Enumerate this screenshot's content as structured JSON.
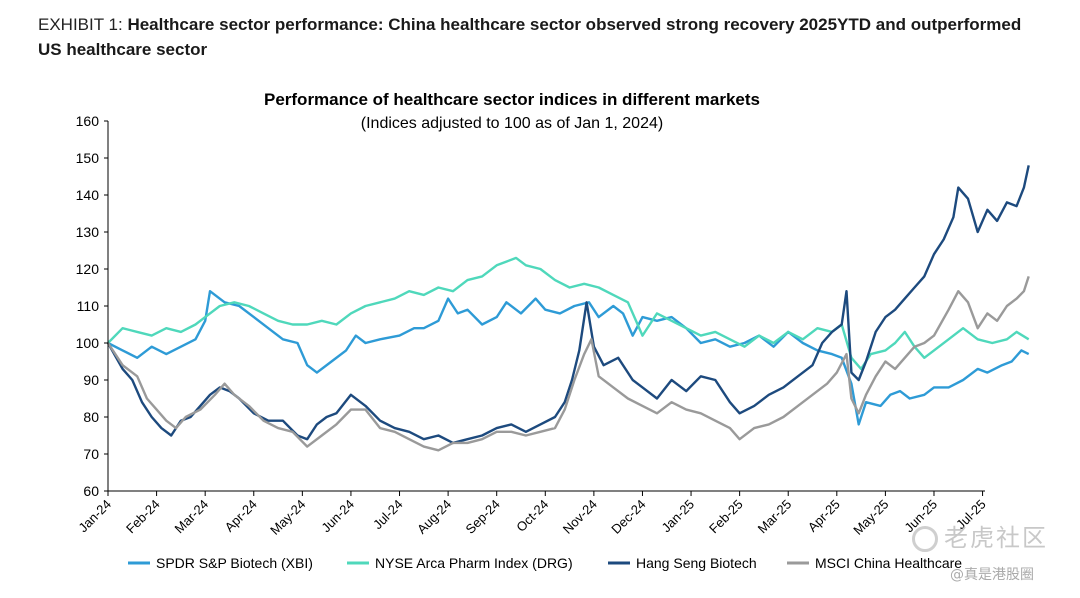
{
  "exhibit": {
    "prefix": "EXHIBIT 1: ",
    "title": "Healthcare sector performance: China healthcare sector observed strong recovery 2025YTD and outperformed US healthcare sector"
  },
  "watermark": {
    "brand": "老虎社区",
    "handle": "@真是港股圈"
  },
  "chart_data": {
    "type": "line",
    "title": "Performance of healthcare sector indices in different markets",
    "subtitle": "(Indices adjusted to 100 as of Jan 1, 2024)",
    "xlabel": "",
    "ylabel": "",
    "ylim": [
      60,
      160
    ],
    "yticks": [
      60,
      70,
      80,
      90,
      100,
      110,
      120,
      130,
      140,
      150,
      160
    ],
    "xticks": [
      "Jan-24",
      "Feb-24",
      "Mar-24",
      "Apr-24",
      "May-24",
      "Jun-24",
      "Jul-24",
      "Aug-24",
      "Sep-24",
      "Oct-24",
      "Nov-24",
      "Dec-24",
      "Jan-25",
      "Feb-25",
      "Mar-25",
      "Apr-25",
      "May-25",
      "Jun-25",
      "Jul-25"
    ],
    "x_unit": "months since Jan-24",
    "grid": false,
    "legend": "bottom",
    "series": [
      {
        "name": "SPDR S&P Biotech (XBI)",
        "color": "#2e9bd6",
        "points": [
          [
            0,
            100
          ],
          [
            0.3,
            98
          ],
          [
            0.6,
            96
          ],
          [
            0.9,
            99
          ],
          [
            1.2,
            97
          ],
          [
            1.5,
            99
          ],
          [
            1.8,
            101
          ],
          [
            2.0,
            106
          ],
          [
            2.1,
            114
          ],
          [
            2.4,
            111
          ],
          [
            2.7,
            110
          ],
          [
            3.0,
            107
          ],
          [
            3.3,
            104
          ],
          [
            3.6,
            101
          ],
          [
            3.9,
            100
          ],
          [
            4.1,
            94
          ],
          [
            4.3,
            92
          ],
          [
            4.6,
            95
          ],
          [
            4.9,
            98
          ],
          [
            5.1,
            102
          ],
          [
            5.3,
            100
          ],
          [
            5.6,
            101
          ],
          [
            6.0,
            102
          ],
          [
            6.3,
            104
          ],
          [
            6.5,
            104
          ],
          [
            6.8,
            106
          ],
          [
            7.0,
            112
          ],
          [
            7.2,
            108
          ],
          [
            7.4,
            109
          ],
          [
            7.7,
            105
          ],
          [
            8.0,
            107
          ],
          [
            8.2,
            111
          ],
          [
            8.5,
            108
          ],
          [
            8.8,
            112
          ],
          [
            9.0,
            109
          ],
          [
            9.3,
            108
          ],
          [
            9.6,
            110
          ],
          [
            9.9,
            111
          ],
          [
            10.1,
            107
          ],
          [
            10.4,
            110
          ],
          [
            10.6,
            108
          ],
          [
            10.8,
            102
          ],
          [
            11.0,
            107
          ],
          [
            11.3,
            106
          ],
          [
            11.6,
            107
          ],
          [
            11.9,
            104
          ],
          [
            12.2,
            100
          ],
          [
            12.5,
            101
          ],
          [
            12.8,
            99
          ],
          [
            13.1,
            100
          ],
          [
            13.4,
            102
          ],
          [
            13.7,
            99
          ],
          [
            14.0,
            103
          ],
          [
            14.3,
            100
          ],
          [
            14.6,
            98
          ],
          [
            14.9,
            97
          ],
          [
            15.1,
            96
          ],
          [
            15.3,
            89
          ],
          [
            15.45,
            78
          ],
          [
            15.6,
            84
          ],
          [
            15.9,
            83
          ],
          [
            16.1,
            86
          ],
          [
            16.3,
            87
          ],
          [
            16.5,
            85
          ],
          [
            16.8,
            86
          ],
          [
            17.0,
            88
          ],
          [
            17.3,
            88
          ],
          [
            17.6,
            90
          ],
          [
            17.9,
            93
          ],
          [
            18.1,
            92
          ],
          [
            18.4,
            94
          ],
          [
            18.6,
            95
          ],
          [
            18.8,
            98
          ],
          [
            18.95,
            97
          ]
        ]
      },
      {
        "name": "NYSE Arca Pharm Index (DRG)",
        "color": "#4fd8bb",
        "points": [
          [
            0,
            100
          ],
          [
            0.3,
            104
          ],
          [
            0.6,
            103
          ],
          [
            0.9,
            102
          ],
          [
            1.2,
            104
          ],
          [
            1.5,
            103
          ],
          [
            1.8,
            105
          ],
          [
            2.0,
            107
          ],
          [
            2.3,
            110
          ],
          [
            2.6,
            111
          ],
          [
            2.9,
            110
          ],
          [
            3.2,
            108
          ],
          [
            3.5,
            106
          ],
          [
            3.8,
            105
          ],
          [
            4.1,
            105
          ],
          [
            4.4,
            106
          ],
          [
            4.7,
            105
          ],
          [
            5.0,
            108
          ],
          [
            5.3,
            110
          ],
          [
            5.6,
            111
          ],
          [
            5.9,
            112
          ],
          [
            6.2,
            114
          ],
          [
            6.5,
            113
          ],
          [
            6.8,
            115
          ],
          [
            7.1,
            114
          ],
          [
            7.4,
            117
          ],
          [
            7.7,
            118
          ],
          [
            8.0,
            121
          ],
          [
            8.2,
            122
          ],
          [
            8.4,
            123
          ],
          [
            8.6,
            121
          ],
          [
            8.9,
            120
          ],
          [
            9.2,
            117
          ],
          [
            9.5,
            115
          ],
          [
            9.8,
            116
          ],
          [
            10.1,
            115
          ],
          [
            10.4,
            113
          ],
          [
            10.7,
            111
          ],
          [
            11.0,
            102
          ],
          [
            11.3,
            108
          ],
          [
            11.6,
            106
          ],
          [
            11.9,
            104
          ],
          [
            12.2,
            102
          ],
          [
            12.5,
            103
          ],
          [
            12.8,
            101
          ],
          [
            13.1,
            99
          ],
          [
            13.4,
            102
          ],
          [
            13.7,
            100
          ],
          [
            14.0,
            103
          ],
          [
            14.3,
            101
          ],
          [
            14.6,
            104
          ],
          [
            14.9,
            103
          ],
          [
            15.1,
            105
          ],
          [
            15.3,
            96
          ],
          [
            15.5,
            93
          ],
          [
            15.7,
            97
          ],
          [
            16.0,
            98
          ],
          [
            16.2,
            100
          ],
          [
            16.4,
            103
          ],
          [
            16.6,
            99
          ],
          [
            16.8,
            96
          ],
          [
            17.0,
            98
          ],
          [
            17.3,
            101
          ],
          [
            17.6,
            104
          ],
          [
            17.9,
            101
          ],
          [
            18.2,
            100
          ],
          [
            18.5,
            101
          ],
          [
            18.7,
            103
          ],
          [
            18.95,
            101
          ]
        ]
      },
      {
        "name": "Hang Seng Biotech",
        "color": "#1d4a7e",
        "points": [
          [
            0,
            100
          ],
          [
            0.3,
            93
          ],
          [
            0.5,
            90
          ],
          [
            0.7,
            84
          ],
          [
            0.9,
            80
          ],
          [
            1.1,
            77
          ],
          [
            1.3,
            75
          ],
          [
            1.5,
            79
          ],
          [
            1.7,
            80
          ],
          [
            1.9,
            83
          ],
          [
            2.1,
            86
          ],
          [
            2.3,
            88
          ],
          [
            2.5,
            87
          ],
          [
            2.7,
            85
          ],
          [
            3.0,
            81
          ],
          [
            3.3,
            79
          ],
          [
            3.6,
            79
          ],
          [
            3.9,
            75
          ],
          [
            4.1,
            74
          ],
          [
            4.3,
            78
          ],
          [
            4.5,
            80
          ],
          [
            4.7,
            81
          ],
          [
            5.0,
            86
          ],
          [
            5.3,
            83
          ],
          [
            5.6,
            79
          ],
          [
            5.9,
            77
          ],
          [
            6.2,
            76
          ],
          [
            6.5,
            74
          ],
          [
            6.8,
            75
          ],
          [
            7.1,
            73
          ],
          [
            7.4,
            74
          ],
          [
            7.7,
            75
          ],
          [
            8.0,
            77
          ],
          [
            8.3,
            78
          ],
          [
            8.6,
            76
          ],
          [
            8.9,
            78
          ],
          [
            9.2,
            80
          ],
          [
            9.4,
            84
          ],
          [
            9.55,
            90
          ],
          [
            9.7,
            98
          ],
          [
            9.85,
            111
          ],
          [
            10.0,
            99
          ],
          [
            10.2,
            94
          ],
          [
            10.5,
            96
          ],
          [
            10.8,
            90
          ],
          [
            11.0,
            88
          ],
          [
            11.3,
            85
          ],
          [
            11.6,
            90
          ],
          [
            11.9,
            87
          ],
          [
            12.2,
            91
          ],
          [
            12.5,
            90
          ],
          [
            12.8,
            84
          ],
          [
            13.0,
            81
          ],
          [
            13.3,
            83
          ],
          [
            13.6,
            86
          ],
          [
            13.9,
            88
          ],
          [
            14.2,
            91
          ],
          [
            14.5,
            94
          ],
          [
            14.7,
            100
          ],
          [
            14.9,
            103
          ],
          [
            15.1,
            105
          ],
          [
            15.2,
            114
          ],
          [
            15.3,
            92
          ],
          [
            15.45,
            90
          ],
          [
            15.6,
            95
          ],
          [
            15.8,
            103
          ],
          [
            16.0,
            107
          ],
          [
            16.2,
            109
          ],
          [
            16.4,
            112
          ],
          [
            16.6,
            115
          ],
          [
            16.8,
            118
          ],
          [
            17.0,
            124
          ],
          [
            17.2,
            128
          ],
          [
            17.4,
            134
          ],
          [
            17.5,
            142
          ],
          [
            17.7,
            139
          ],
          [
            17.9,
            130
          ],
          [
            18.1,
            136
          ],
          [
            18.3,
            133
          ],
          [
            18.5,
            138
          ],
          [
            18.7,
            137
          ],
          [
            18.85,
            142
          ],
          [
            18.95,
            148
          ]
        ]
      },
      {
        "name": "MSCI China Healthcare",
        "color": "#9a9a9a",
        "points": [
          [
            0,
            100
          ],
          [
            0.3,
            94
          ],
          [
            0.6,
            91
          ],
          [
            0.8,
            85
          ],
          [
            1.0,
            82
          ],
          [
            1.2,
            79
          ],
          [
            1.4,
            77
          ],
          [
            1.6,
            80
          ],
          [
            1.9,
            82
          ],
          [
            2.2,
            86
          ],
          [
            2.4,
            89
          ],
          [
            2.6,
            86
          ],
          [
            2.9,
            83
          ],
          [
            3.2,
            79
          ],
          [
            3.5,
            77
          ],
          [
            3.8,
            76
          ],
          [
            4.1,
            72
          ],
          [
            4.4,
            75
          ],
          [
            4.7,
            78
          ],
          [
            5.0,
            82
          ],
          [
            5.3,
            82
          ],
          [
            5.6,
            77
          ],
          [
            5.9,
            76
          ],
          [
            6.2,
            74
          ],
          [
            6.5,
            72
          ],
          [
            6.8,
            71
          ],
          [
            7.1,
            73
          ],
          [
            7.4,
            73
          ],
          [
            7.7,
            74
          ],
          [
            8.0,
            76
          ],
          [
            8.3,
            76
          ],
          [
            8.6,
            75
          ],
          [
            8.9,
            76
          ],
          [
            9.2,
            77
          ],
          [
            9.4,
            82
          ],
          [
            9.6,
            90
          ],
          [
            9.8,
            97
          ],
          [
            9.95,
            101
          ],
          [
            10.1,
            91
          ],
          [
            10.4,
            88
          ],
          [
            10.7,
            85
          ],
          [
            11.0,
            83
          ],
          [
            11.3,
            81
          ],
          [
            11.6,
            84
          ],
          [
            11.9,
            82
          ],
          [
            12.2,
            81
          ],
          [
            12.5,
            79
          ],
          [
            12.8,
            77
          ],
          [
            13.0,
            74
          ],
          [
            13.3,
            77
          ],
          [
            13.6,
            78
          ],
          [
            13.9,
            80
          ],
          [
            14.2,
            83
          ],
          [
            14.5,
            86
          ],
          [
            14.8,
            89
          ],
          [
            15.0,
            92
          ],
          [
            15.2,
            97
          ],
          [
            15.3,
            85
          ],
          [
            15.45,
            81
          ],
          [
            15.6,
            86
          ],
          [
            15.8,
            91
          ],
          [
            16.0,
            95
          ],
          [
            16.2,
            93
          ],
          [
            16.4,
            96
          ],
          [
            16.6,
            99
          ],
          [
            16.8,
            100
          ],
          [
            17.0,
            102
          ],
          [
            17.3,
            109
          ],
          [
            17.5,
            114
          ],
          [
            17.7,
            111
          ],
          [
            17.9,
            104
          ],
          [
            18.1,
            108
          ],
          [
            18.3,
            106
          ],
          [
            18.5,
            110
          ],
          [
            18.7,
            112
          ],
          [
            18.85,
            114
          ],
          [
            18.95,
            118
          ]
        ]
      }
    ]
  }
}
